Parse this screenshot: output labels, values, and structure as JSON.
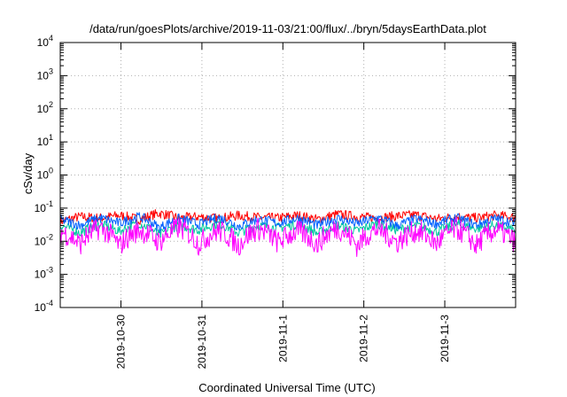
{
  "chart_data": {
    "type": "line",
    "title": "/data/run/goesPlots/archive/2019-11-03/21:00/flux/../bryn/5daysEarthData.plot",
    "xlabel": "Coordinated Universal Time (UTC)",
    "ylabel": "cSv/day",
    "y_scale": "log",
    "ylim_exponents": [
      -4,
      4
    ],
    "y_tick_exponents": [
      4,
      3,
      2,
      1,
      0,
      -1,
      -2,
      -3,
      -4
    ],
    "y_tick_base": "10",
    "xlim": [
      "2019-10-29T06:00",
      "2019-11-03T21:00"
    ],
    "x_ticks": [
      {
        "date": "2019-10-30T00:00",
        "label": "2019-10-30"
      },
      {
        "date": "2019-10-31T00:00",
        "label": "2019-10-31"
      },
      {
        "date": "2019-11-01T00:00",
        "label": "2019-11-1"
      },
      {
        "date": "2019-11-02T00:00",
        "label": "2019-11-2"
      },
      {
        "date": "2019-11-03T00:00",
        "label": "2019-11-3"
      }
    ],
    "grid": true,
    "series": [
      {
        "color": "#ff0000",
        "values": [
          0.04,
          0.055,
          0.05,
          0.06,
          0.045,
          0.07,
          0.05,
          0.055,
          0.048,
          0.06,
          0.052,
          0.05,
          0.06,
          0.045,
          0.065,
          0.055,
          0.05,
          0.058,
          0.062,
          0.047,
          0.055,
          0.05,
          0.06,
          0.052
        ]
      },
      {
        "color": "#00c8a0",
        "values": [
          0.03,
          0.018,
          0.032,
          0.02,
          0.035,
          0.015,
          0.03,
          0.022,
          0.034,
          0.018,
          0.03,
          0.025,
          0.033,
          0.017,
          0.031,
          0.02,
          0.034,
          0.022,
          0.03,
          0.019,
          0.032,
          0.024,
          0.031,
          0.02
        ]
      },
      {
        "color": "#0060ff",
        "values": [
          0.045,
          0.03,
          0.05,
          0.035,
          0.055,
          0.025,
          0.048,
          0.032,
          0.052,
          0.028,
          0.046,
          0.035,
          0.05,
          0.03,
          0.049,
          0.033,
          0.051,
          0.029,
          0.047,
          0.034,
          0.05,
          0.031,
          0.048,
          0.035
        ]
      },
      {
        "color": "#ff00ff",
        "values": [
          0.02,
          0.008,
          0.025,
          0.007,
          0.022,
          0.009,
          0.026,
          0.008,
          0.021,
          0.007,
          0.024,
          0.009,
          0.02,
          0.008,
          0.025,
          0.007,
          0.023,
          0.009,
          0.021,
          0.008,
          0.024,
          0.007,
          0.022,
          0.009
        ]
      }
    ]
  }
}
